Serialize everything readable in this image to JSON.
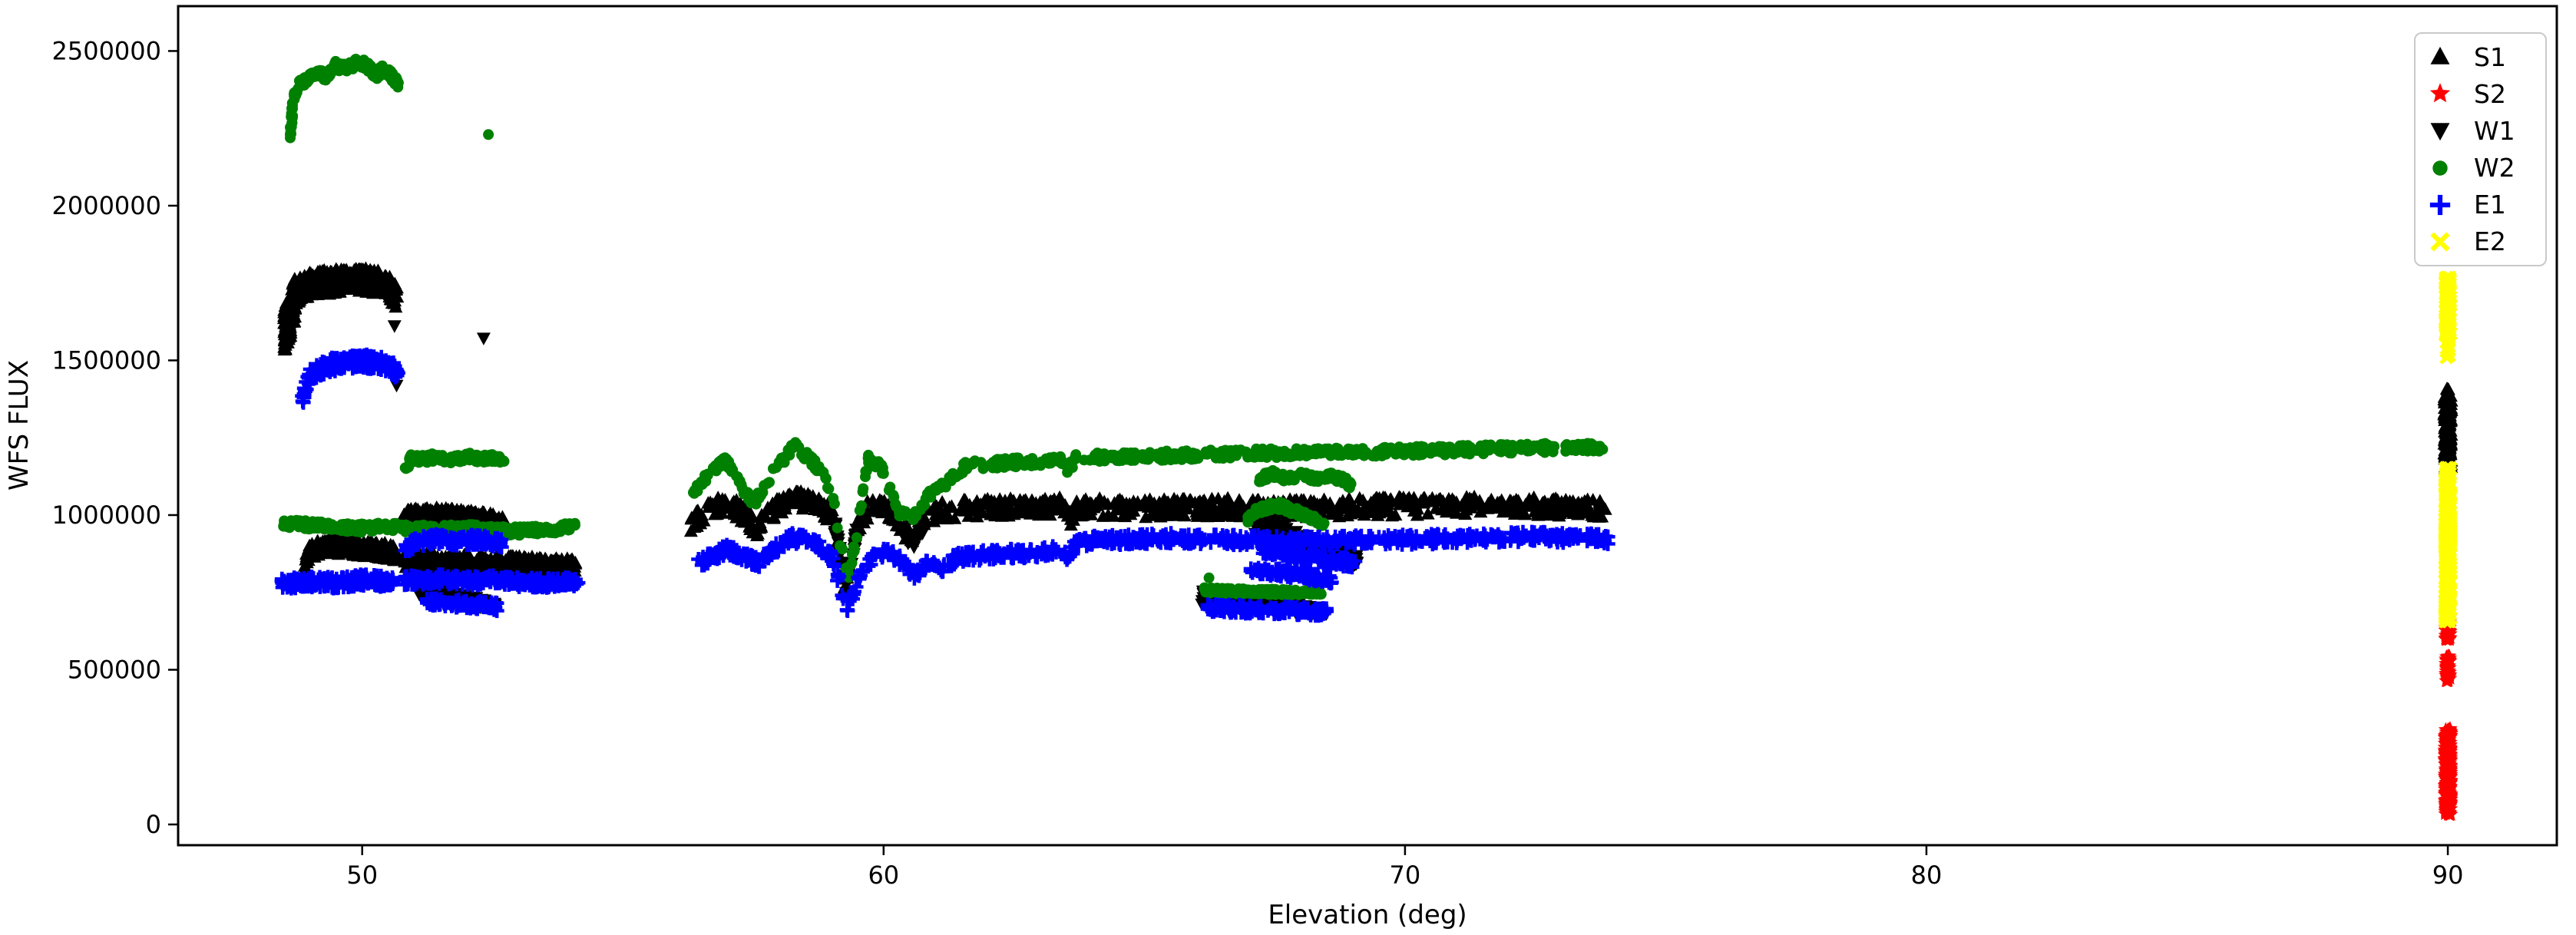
{
  "chart_data": {
    "type": "scatter",
    "title": "",
    "xlabel": "Elevation (deg)",
    "ylabel": "WFS FLUX",
    "x_ticks": [
      50,
      60,
      70,
      80,
      90
    ],
    "y_ticks": [
      0,
      500000,
      1000000,
      1500000,
      2000000,
      2500000
    ],
    "xlim": [
      46.47,
      92.09
    ],
    "ylim": [
      -67000,
      2645000
    ],
    "grid": false,
    "legend_position": "upper right",
    "series": [
      {
        "name": "S1",
        "marker": "triangle-up",
        "color": "#000000",
        "segments": [
          {
            "x": [
              48.5,
              48.6,
              48.72
            ],
            "y": [
              1590000,
              1640000,
              1700000
            ],
            "band": 75000,
            "n": 130
          },
          {
            "x": [
              48.72,
              48.9,
              49.2,
              49.6,
              50.0,
              50.3,
              50.55,
              50.68
            ],
            "y": [
              1720000,
              1740000,
              1750000,
              1757000,
              1760000,
              1750000,
              1728000,
              1700000
            ],
            "band": 40000,
            "n": 320
          },
          {
            "x": [
              48.88,
              48.98,
              49.15,
              49.5,
              50.0,
              50.4,
              50.65
            ],
            "y": [
              830000,
              875000,
              895000,
              900000,
              893000,
              885000,
              872000
            ],
            "band": 27000,
            "n": 220
          },
          {
            "x": [
              50.78,
              51.3,
              51.9,
              52.4,
              52.7
            ],
            "y": [
              990000,
              1000000,
              992000,
              982000,
              970000
            ],
            "band": 26000,
            "n": 220
          },
          {
            "x": [
              50.78,
              51.5,
              52.5,
              53.5,
              54.1
            ],
            "y": [
              857000,
              850000,
              843000,
              835000,
              830000
            ],
            "band": 28000,
            "n": 290
          },
          {
            "x": [
              56.3,
              56.6,
              57.0,
              57.35,
              57.55,
              57.8,
              58.1,
              58.35,
              58.7,
              59.0,
              59.15,
              59.28,
              59.45,
              59.7,
              59.95,
              60.2,
              60.5,
              60.75,
              61.0,
              61.5,
              62.5,
              63.4,
              63.55,
              63.7,
              65.0,
              66.5,
              68.0,
              70.0,
              72.0,
              73.9
            ],
            "y": [
              975000,
              1015000,
              1040000,
              1000000,
              958000,
              1005000,
              1040000,
              1050000,
              1040000,
              1000000,
              880000,
              760000,
              940000,
              1020000,
              1035000,
              1000000,
              928000,
              990000,
              1010000,
              1020000,
              1025000,
              1030000,
              985000,
              1025000,
              1020000,
              1025000,
              1020000,
              1028000,
              1030000,
              1020000
            ],
            "band": 30000,
            "n": 880
          }
        ],
        "vclusters": [
          {
            "x": 90.0,
            "y0": 1150000,
            "y1": 1385000,
            "xband": 0.07,
            "n": 200
          },
          {
            "x": 90.0,
            "y0": 1385000,
            "y1": 1408000,
            "xband": 0.02,
            "n": 6
          }
        ],
        "points": []
      },
      {
        "name": "S2",
        "marker": "star",
        "color": "#ff0000",
        "segments": [],
        "vclusters": [
          {
            "x": 90.0,
            "y0": 30000,
            "y1": 310000,
            "xband": 0.06,
            "n": 370
          },
          {
            "x": 90.0,
            "y0": 463000,
            "y1": 545000,
            "xband": 0.04,
            "n": 65
          },
          {
            "x": 90.0,
            "y0": 597000,
            "y1": 668000,
            "xband": 0.045,
            "n": 65
          },
          {
            "x": 90.0,
            "y0": 660000,
            "y1": 820000,
            "xband": 0.05,
            "n": 15
          }
        ],
        "points": []
      },
      {
        "name": "W1",
        "marker": "triangle-down",
        "color": "#000000",
        "segments": [
          {
            "x": [
              51.05,
              51.5,
              52.0,
              52.55
            ],
            "y": [
              757000,
              740000,
              726000,
              706000
            ],
            "band": 26000,
            "band2": 12000,
            "n": 110
          },
          {
            "x": [
              59.05,
              59.28,
              59.5
            ],
            "y": [
              980000,
              775000,
              950000
            ],
            "band": 28000,
            "n": 42
          },
          {
            "x": [
              60.35,
              60.55,
              60.75
            ],
            "y": [
              960000,
              905000,
              960000
            ],
            "band": 22000,
            "n": 22
          },
          {
            "x": [
              67.1,
              67.6,
              68.2,
              68.7,
              69.1
            ],
            "y": [
              972000,
              940000,
              905000,
              872000,
              852000
            ],
            "band": 34000,
            "band2": 18000,
            "n": 150
          },
          {
            "x": [
              66.1,
              66.8,
              67.6,
              68.5
            ],
            "y": [
              733000,
              720000,
              706000,
              690000
            ],
            "band": 24000,
            "band2": 12000,
            "n": 130
          }
        ],
        "vclusters": [
          {
            "x": 90.0,
            "y0": 985000,
            "y1": 1075000,
            "xband": 0.03,
            "n": 12
          }
        ],
        "points": [
          [
            50.62,
            1680000
          ],
          [
            50.62,
            1612000
          ],
          [
            50.66,
            1420000
          ],
          [
            52.33,
            1572000
          ]
        ]
      },
      {
        "name": "W2",
        "marker": "circle",
        "color": "#008000",
        "segments": [
          {
            "x": [
              48.62,
              48.64,
              48.67
            ],
            "y": [
              2225000,
              2270000,
              2320000
            ],
            "band": 30000,
            "n": 22
          },
          {
            "x": [
              48.67,
              48.76,
              48.9,
              49.1,
              49.3,
              49.5,
              49.7,
              49.9,
              50.1,
              50.25,
              50.4,
              50.55,
              50.65,
              50.72
            ],
            "y": [
              2340000,
              2385000,
              2405000,
              2430000,
              2420000,
              2455000,
              2440000,
              2468000,
              2452000,
              2420000,
              2440000,
              2420000,
              2402000,
              2380000
            ],
            "band": 15000,
            "n": 210
          },
          {
            "x": [
              50.82,
              50.95,
              51.2,
              51.45,
              51.7,
              52.0,
              52.3,
              52.55,
              52.75
            ],
            "y": [
              1146000,
              1186000,
              1180000,
              1190000,
              1176000,
              1190000,
              1180000,
              1186000,
              1172000
            ],
            "band": 13000,
            "n": 170
          },
          {
            "x": [
              48.47,
              49.0,
              49.5,
              50.0,
              50.5,
              51.0,
              51.5,
              52.0,
              52.5,
              53.0,
              53.5,
              53.9,
              54.12
            ],
            "y": [
              972000,
              967000,
              962000,
              958000,
              962000,
              957000,
              953000,
              957000,
              950000,
              948000,
              952000,
              958000,
              970000
            ],
            "band": 14000,
            "n": 380
          },
          {
            "x": [
              56.35,
              56.95,
              57.5,
              57.9,
              58.3,
              58.7,
              59.0,
              59.18,
              59.32,
              59.5,
              59.7,
              59.95,
              60.3,
              60.55,
              60.9,
              61.2,
              61.6,
              62.5,
              63.4,
              63.52,
              63.7,
              65.0,
              67.0,
              69.0,
              71.0,
              73.0,
              73.8
            ],
            "y": [
              1075000,
              1180000,
              1035000,
              1140000,
              1225000,
              1160000,
              1085000,
              900000,
              800000,
              950000,
              1185000,
              1155000,
              1005000,
              990000,
              1070000,
              1105000,
              1160000,
              1170000,
              1175000,
              1145000,
              1185000,
              1190000,
              1200000,
              1202000,
              1210000,
              1218000,
              1220000
            ],
            "band": 15000,
            "n": 700
          },
          {
            "x": [
              67.2,
              67.45,
              67.7,
              68.0,
              68.3,
              68.6,
              68.85,
              68.97
            ],
            "y": [
              1115000,
              1135000,
              1120000,
              1128000,
              1118000,
              1125000,
              1112000,
              1092000
            ],
            "band": 12000,
            "n": 130
          },
          {
            "x": [
              66.98,
              67.15,
              67.35,
              67.6,
              67.85,
              68.1,
              68.3,
              68.45
            ],
            "y": [
              988000,
              1012000,
              1025000,
              1030000,
              1014000,
              998000,
              985000,
              963000
            ],
            "band": 13000,
            "n": 110
          },
          {
            "x": [
              66.14,
              67.0,
              68.0,
              68.4
            ],
            "y": [
              757000,
              753000,
              750000,
              752000
            ],
            "band": 9000,
            "n": 190
          }
        ],
        "vclusters": [],
        "points": [
          [
            52.42,
            2230000
          ],
          [
            66.24,
            797000
          ]
        ]
      },
      {
        "name": "E1",
        "marker": "plus",
        "color": "#0000ff",
        "segments": [
          {
            "x": [
              48.84,
              48.9,
              48.98,
              49.15,
              49.4,
              49.7,
              50.0,
              50.3,
              50.5,
              50.62,
              50.7
            ],
            "y": [
              1358000,
              1408000,
              1446000,
              1470000,
              1486000,
              1492000,
              1498000,
              1492000,
              1484000,
              1470000,
              1442000
            ],
            "band": 22000,
            "n": 210
          },
          {
            "x": [
              48.45,
              49.0,
              49.5,
              50.0,
              50.6
            ],
            "y": [
              778000,
              786000,
              780000,
              790000,
              784000
            ],
            "band": 18000,
            "n": 210
          },
          {
            "x": [
              50.82,
              51.1,
              51.4,
              51.8,
              52.2,
              52.5,
              52.72
            ],
            "y": [
              893000,
              915000,
              922000,
              917000,
              921000,
              914000,
              903000
            ],
            "band": 16000,
            "n": 160
          },
          {
            "x": [
              50.8,
              51.5,
              52.0,
              52.5,
              53.0,
              53.5,
              54.15
            ],
            "y": [
              788000,
              793000,
              787000,
              790000,
              783000,
              780000,
              786000
            ],
            "band": 15000,
            "n": 280
          },
          {
            "x": [
              51.2,
              51.8,
              52.3,
              52.62
            ],
            "y": [
              718000,
              714000,
              709000,
              702000
            ],
            "band": 13000,
            "n": 100
          },
          {
            "x": [
              56.45,
              57.0,
              57.6,
              58.2,
              58.7,
              59.0,
              59.3,
              59.55,
              59.8,
              60.1,
              60.4,
              60.62,
              60.9,
              61.1,
              61.4,
              62.0,
              63.0,
              63.45,
              63.55,
              63.7,
              64.5,
              65.5,
              66.5,
              67.5,
              68.5,
              69.5,
              70.5,
              71.5,
              72.5,
              73.9
            ],
            "y": [
              845000,
              890000,
              846000,
              928000,
              912000,
              862000,
              700000,
              800000,
              868000,
              880000,
              842000,
              800000,
              858000,
              822000,
              862000,
              872000,
              880000,
              885000,
              862000,
              915000,
              920000,
              925000,
              920000,
              918000,
              916000,
              920000,
              922000,
              926000,
              930000,
              922000
            ],
            "band": 16000,
            "n": 850
          },
          {
            "x": [
              67.25,
              67.7,
              68.2,
              68.6,
              69.05
            ],
            "y": [
              888000,
              878000,
              862000,
              852000,
              845000
            ],
            "band": 15000,
            "n": 130
          },
          {
            "x": [
              67.0,
              67.5,
              68.0,
              68.6
            ],
            "y": [
              820000,
              815000,
              806000,
              792000
            ],
            "band": 13000,
            "n": 110
          },
          {
            "x": [
              66.2,
              67.0,
              68.0,
              68.52
            ],
            "y": [
              700000,
              695000,
              690000,
              686000
            ],
            "band": 13000,
            "n": 160
          }
        ],
        "vclusters": [],
        "points": []
      },
      {
        "name": "E2",
        "marker": "x",
        "color": "#ffff00",
        "segments": [],
        "vclusters": [
          {
            "x": 90.0,
            "y0": 1573000,
            "y1": 1768000,
            "xband": 0.05,
            "n": 180
          },
          {
            "x": 90.0,
            "y0": 1500000,
            "y1": 1573000,
            "xband": 0.03,
            "n": 12
          },
          {
            "x": 90.0,
            "y0": 655000,
            "y1": 1155000,
            "xband": 0.055,
            "n": 520
          }
        ],
        "points": []
      }
    ]
  }
}
